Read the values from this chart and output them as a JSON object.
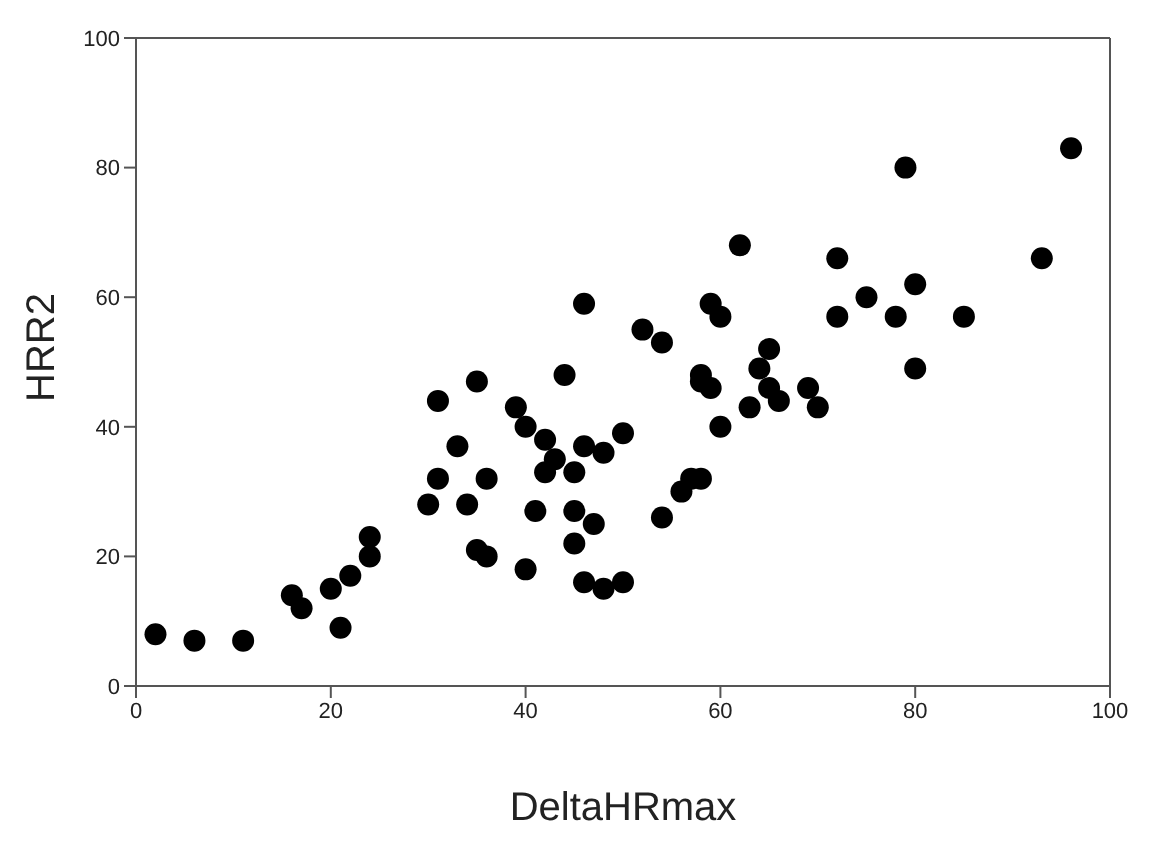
{
  "chart_data": {
    "type": "scatter",
    "xlabel": "DeltaHRmax",
    "ylabel": "HRR2",
    "xlim": [
      0,
      100
    ],
    "ylim": [
      0,
      100
    ],
    "xticks": [
      0,
      20,
      40,
      60,
      80,
      100
    ],
    "yticks": [
      0,
      20,
      40,
      60,
      80,
      100
    ],
    "grid": false,
    "legend": false,
    "marker": "circle",
    "series": [
      {
        "color": "#000000",
        "x": [
          2,
          6,
          11,
          16,
          17,
          20,
          21,
          22,
          24,
          24,
          30,
          31,
          31,
          33,
          34,
          35,
          35,
          36,
          36,
          39,
          40,
          40,
          41,
          42,
          42,
          43,
          44,
          45,
          45,
          45,
          46,
          46,
          46,
          47,
          48,
          48,
          50,
          50,
          52,
          54,
          54,
          56,
          57,
          58,
          58,
          58,
          59,
          59,
          60,
          60,
          62,
          63,
          64,
          65,
          65,
          66,
          69,
          70,
          72,
          72,
          75,
          78,
          79,
          80,
          80,
          85,
          93,
          96
        ],
        "values": [
          8,
          7,
          7,
          14,
          12,
          15,
          9,
          17,
          20,
          23,
          28,
          32,
          44,
          37,
          28,
          47,
          21,
          20,
          32,
          43,
          40,
          18,
          27,
          38,
          33,
          35,
          48,
          33,
          27,
          22,
          59,
          37,
          16,
          25,
          36,
          15,
          16,
          39,
          55,
          53,
          26,
          30,
          32,
          32,
          48,
          47,
          46,
          59,
          57,
          40,
          68,
          43,
          49,
          46,
          52,
          44,
          46,
          43,
          66,
          57,
          60,
          57,
          80,
          62,
          49,
          57,
          66,
          83
        ]
      }
    ]
  }
}
